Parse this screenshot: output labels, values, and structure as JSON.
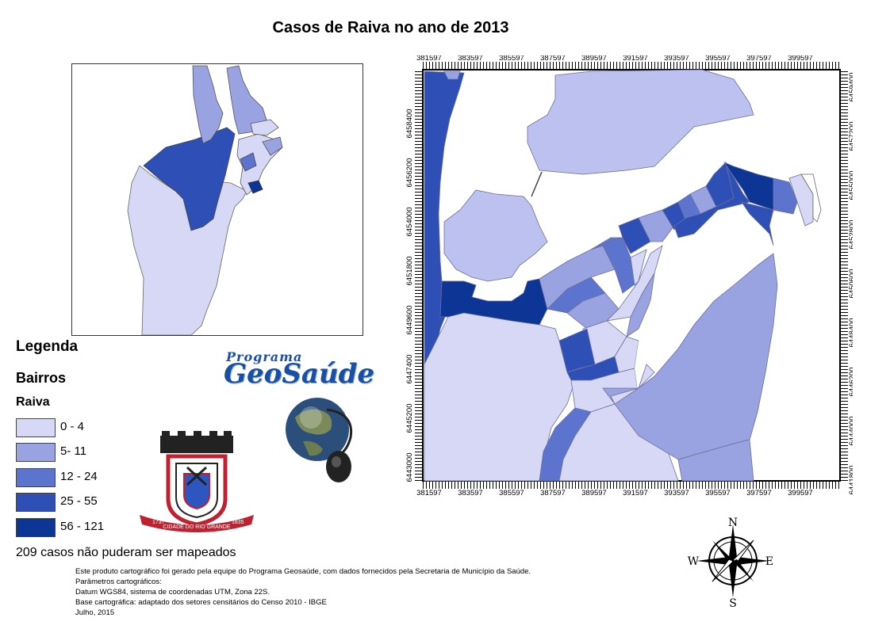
{
  "title": "Casos de Raiva no ano de 2013",
  "map": {
    "x_ticks": [
      "381597",
      "383597",
      "385597",
      "387597",
      "389597",
      "391597",
      "393597",
      "395597",
      "397597",
      "399597"
    ],
    "y_ticks_left": [
      "6443000",
      "6445200",
      "6447400",
      "6449600",
      "6451800",
      "6454000",
      "6456200",
      "6458400"
    ],
    "y_ticks_right": [
      "6441800",
      "6444000",
      "6446200",
      "6448400",
      "6450600",
      "6452800",
      "6455000",
      "6457200",
      "6459400"
    ]
  },
  "legend": {
    "title": "Legenda",
    "layer": "Bairros",
    "field": "Raiva",
    "classes": [
      {
        "label": "0 - 4",
        "color": "#d7d8f6"
      },
      {
        "label": "5- 11",
        "color": "#9aa3e1"
      },
      {
        "label": "12 - 24",
        "color": "#5d74cf"
      },
      {
        "label": "25 - 55",
        "color": "#2e4fb6"
      },
      {
        "label": "56 - 121",
        "color": "#0d3596"
      }
    ]
  },
  "unmapped": "209 casos não puderam ser mapeados",
  "credits": [
    "Este produto cartográfico foi gerado pela equipe do Programa Geosaúde, com dados fornecidos pela Secretaria de Município da Saúde.",
    "Parâmetros cartográficos:",
    "Datum WGS84, sistema de coordenadas UTM, Zona 22S.",
    "Base cartográfica: adaptado dos setores censitários do Censo 2010 - IBGE",
    "Julho, 2015"
  ],
  "logo": {
    "program_small": "Programa",
    "program_big": "GeoSaúde",
    "crest_year_left": "1737",
    "crest_city": "CIDADE DO RIO GRANDE",
    "crest_year_right": "1835"
  },
  "compass": {
    "n": "N",
    "s": "S",
    "e": "E",
    "w": "W"
  },
  "colors": {
    "class0": "#d7d8f6",
    "class1": "#9aa3e1",
    "class2": "#5d74cf",
    "class3": "#2e4fb6",
    "class4": "#0d3596",
    "water": "#ffffff"
  }
}
